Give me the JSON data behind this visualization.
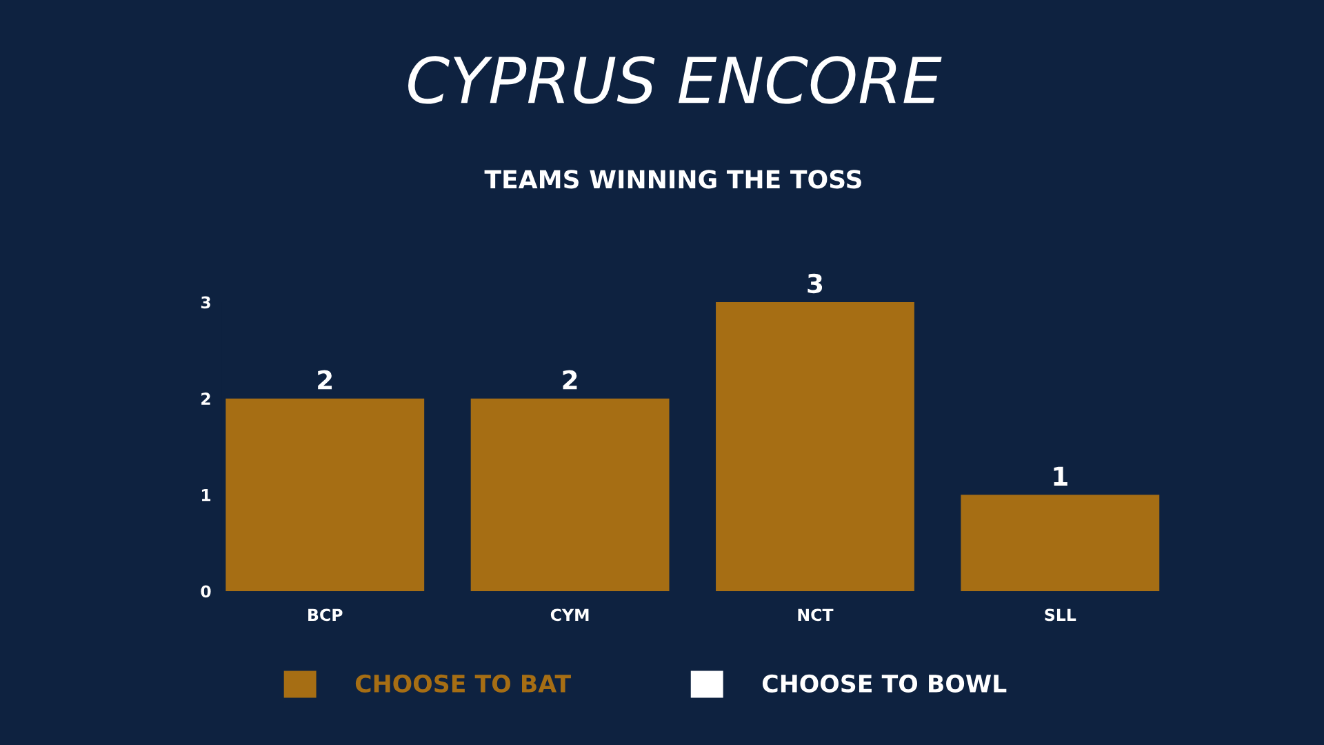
{
  "chart_data": {
    "type": "bar",
    "title": "CYPRUS ENCORE",
    "subtitle": "TEAMS WINNING THE TOSS",
    "categories": [
      "BCP",
      "CYM",
      "NCT",
      "SLL"
    ],
    "series": [
      {
        "name": "CHOOSE TO BAT",
        "color": "#a66e14",
        "values": [
          2,
          2,
          3,
          1
        ],
        "value_labels": [
          "2",
          "2",
          "3",
          "1"
        ]
      },
      {
        "name": "CHOOSE TO BOWL",
        "color": "#ffffff",
        "values": [
          0,
          0,
          0,
          0
        ]
      }
    ],
    "stacked": true,
    "ylim": [
      0,
      3
    ],
    "yticks": [
      0,
      1,
      2,
      3
    ],
    "legend": "bottom"
  }
}
